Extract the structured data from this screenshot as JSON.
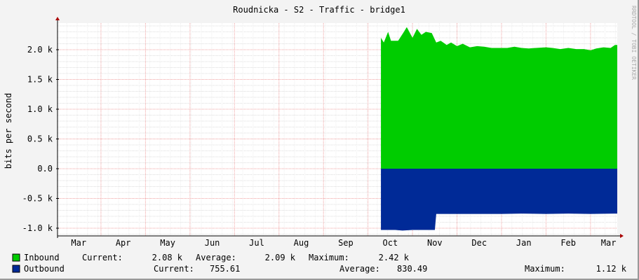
{
  "chart_data": {
    "type": "area",
    "title": "Roudnicka - S2 - Traffic - bridge1",
    "ylabel": "bits per second",
    "watermark": "RRDTOOL / TOBI OETIKER",
    "ylim": [
      -1.13,
      2.42
    ],
    "y_unit": "k",
    "y_ticks": [
      {
        "v": 2.0,
        "label": "2.0 k"
      },
      {
        "v": 1.5,
        "label": "1.5 k"
      },
      {
        "v": 1.0,
        "label": "1.0 k"
      },
      {
        "v": 0.5,
        "label": "0.5 k"
      },
      {
        "v": 0.0,
        "label": "0.0"
      },
      {
        "v": -0.5,
        "label": "-0.5 k"
      },
      {
        "v": -1.0,
        "label": "-1.0 k"
      }
    ],
    "x_ticks": [
      "Mar",
      "Apr",
      "May",
      "Jun",
      "Jul",
      "Aug",
      "Sep",
      "Oct",
      "Nov",
      "Dec",
      "Jan",
      "Feb",
      "Mar"
    ],
    "grid": true,
    "legend_placement": "bottom",
    "series": [
      {
        "name": "Inbound",
        "color": "#00cc00",
        "current": "2.08 k",
        "average": "2.09 k",
        "maximum": "2.42 k",
        "points": [
          [
            "Oct 10",
            2.2
          ],
          [
            "Oct 12",
            2.12
          ],
          [
            "Oct 15",
            2.3
          ],
          [
            "Oct 17",
            2.15
          ],
          [
            "Oct 22",
            2.15
          ],
          [
            "Oct 26",
            2.3
          ],
          [
            "Oct 28",
            2.38
          ],
          [
            "Nov 1",
            2.2
          ],
          [
            "Nov 4",
            2.35
          ],
          [
            "Nov 7",
            2.25
          ],
          [
            "Nov 10",
            2.3
          ],
          [
            "Nov 14",
            2.28
          ],
          [
            "Nov 17",
            2.12
          ],
          [
            "Nov 20",
            2.15
          ],
          [
            "Nov 24",
            2.08
          ],
          [
            "Nov 27",
            2.12
          ],
          [
            "Dec 1",
            2.06
          ],
          [
            "Dec 5",
            2.1
          ],
          [
            "Dec 10",
            2.04
          ],
          [
            "Dec 15",
            2.06
          ],
          [
            "Dec 20",
            2.05
          ],
          [
            "Dec 25",
            2.03
          ],
          [
            "Jan 1",
            2.03
          ],
          [
            "Jan 5",
            2.03
          ],
          [
            "Jan 10",
            2.05
          ],
          [
            "Jan 15",
            2.03
          ],
          [
            "Jan 20",
            2.02
          ],
          [
            "Jan 25",
            2.03
          ],
          [
            "Feb 1",
            2.04
          ],
          [
            "Feb 5",
            2.03
          ],
          [
            "Feb 10",
            2.01
          ],
          [
            "Feb 15",
            2.03
          ],
          [
            "Feb 20",
            2.01
          ],
          [
            "Feb 25",
            2.01
          ],
          [
            "Mar 1",
            1.99
          ],
          [
            "Mar 5",
            2.02
          ],
          [
            "Mar 10",
            2.04
          ],
          [
            "Mar 15",
            2.03
          ],
          [
            "Mar 18",
            2.08
          ]
        ]
      },
      {
        "name": "Outbound",
        "color": "#002a97",
        "current": "755.61",
        "average": "830.49",
        "maximum": "1.12 k",
        "points": [
          [
            "Oct 10",
            -1.03
          ],
          [
            "Oct 20",
            -1.03
          ],
          [
            "Oct 25",
            -1.04
          ],
          [
            "Nov 1",
            -1.03
          ],
          [
            "Nov 10",
            -1.03
          ],
          [
            "Nov 15",
            -1.03
          ],
          [
            "Nov 17",
            -0.76
          ],
          [
            "Dec 1",
            -0.76
          ],
          [
            "Dec 15",
            -0.76
          ],
          [
            "Jan 1",
            -0.76
          ],
          [
            "Jan 15",
            -0.755
          ],
          [
            "Feb 1",
            -0.76
          ],
          [
            "Feb 15",
            -0.755
          ],
          [
            "Mar 1",
            -0.76
          ],
          [
            "Mar 18",
            -0.755
          ]
        ]
      }
    ]
  },
  "legend": {
    "current_label": "Current:",
    "average_label": "Average:",
    "maximum_label": "Maximum:"
  }
}
